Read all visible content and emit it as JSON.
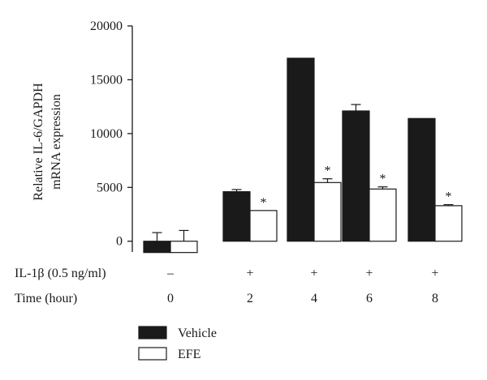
{
  "chart_data": {
    "type": "bar",
    "ylabel_lines": [
      "Relative IL-6/GAPDH",
      "mRNA expression"
    ],
    "ylim": [
      -1000,
      20000
    ],
    "yticks": [
      0,
      5000,
      10000,
      15000,
      20000
    ],
    "ytick_labels": [
      "0",
      "5000",
      "10000",
      "15000",
      "20000"
    ],
    "grid": false,
    "legend_position": "bottom-left",
    "categories": [
      "0",
      "2",
      "4",
      "6",
      "8"
    ],
    "series": [
      {
        "name": "Vehicle",
        "color": "#1a1a1a",
        "values": [
          -1050,
          4600,
          17000,
          12100,
          11400
        ],
        "errors": [
          800,
          200,
          0,
          600,
          0
        ]
      },
      {
        "name": "EFE",
        "color": "#ffffff",
        "values": [
          -1050,
          2850,
          5450,
          4850,
          3300
        ],
        "errors": [
          1000,
          0,
          350,
          200,
          100
        ]
      }
    ],
    "significance": [
      "",
      "*",
      "*",
      "*",
      "*"
    ],
    "table_rows": [
      {
        "label": "IL-1β (0.5 ng/ml)",
        "values": [
          "–",
          "+",
          "+",
          "+",
          "+"
        ]
      },
      {
        "label": "Time (hour)",
        "values": [
          "0",
          "2",
          "4",
          "6",
          "8"
        ]
      }
    ]
  }
}
